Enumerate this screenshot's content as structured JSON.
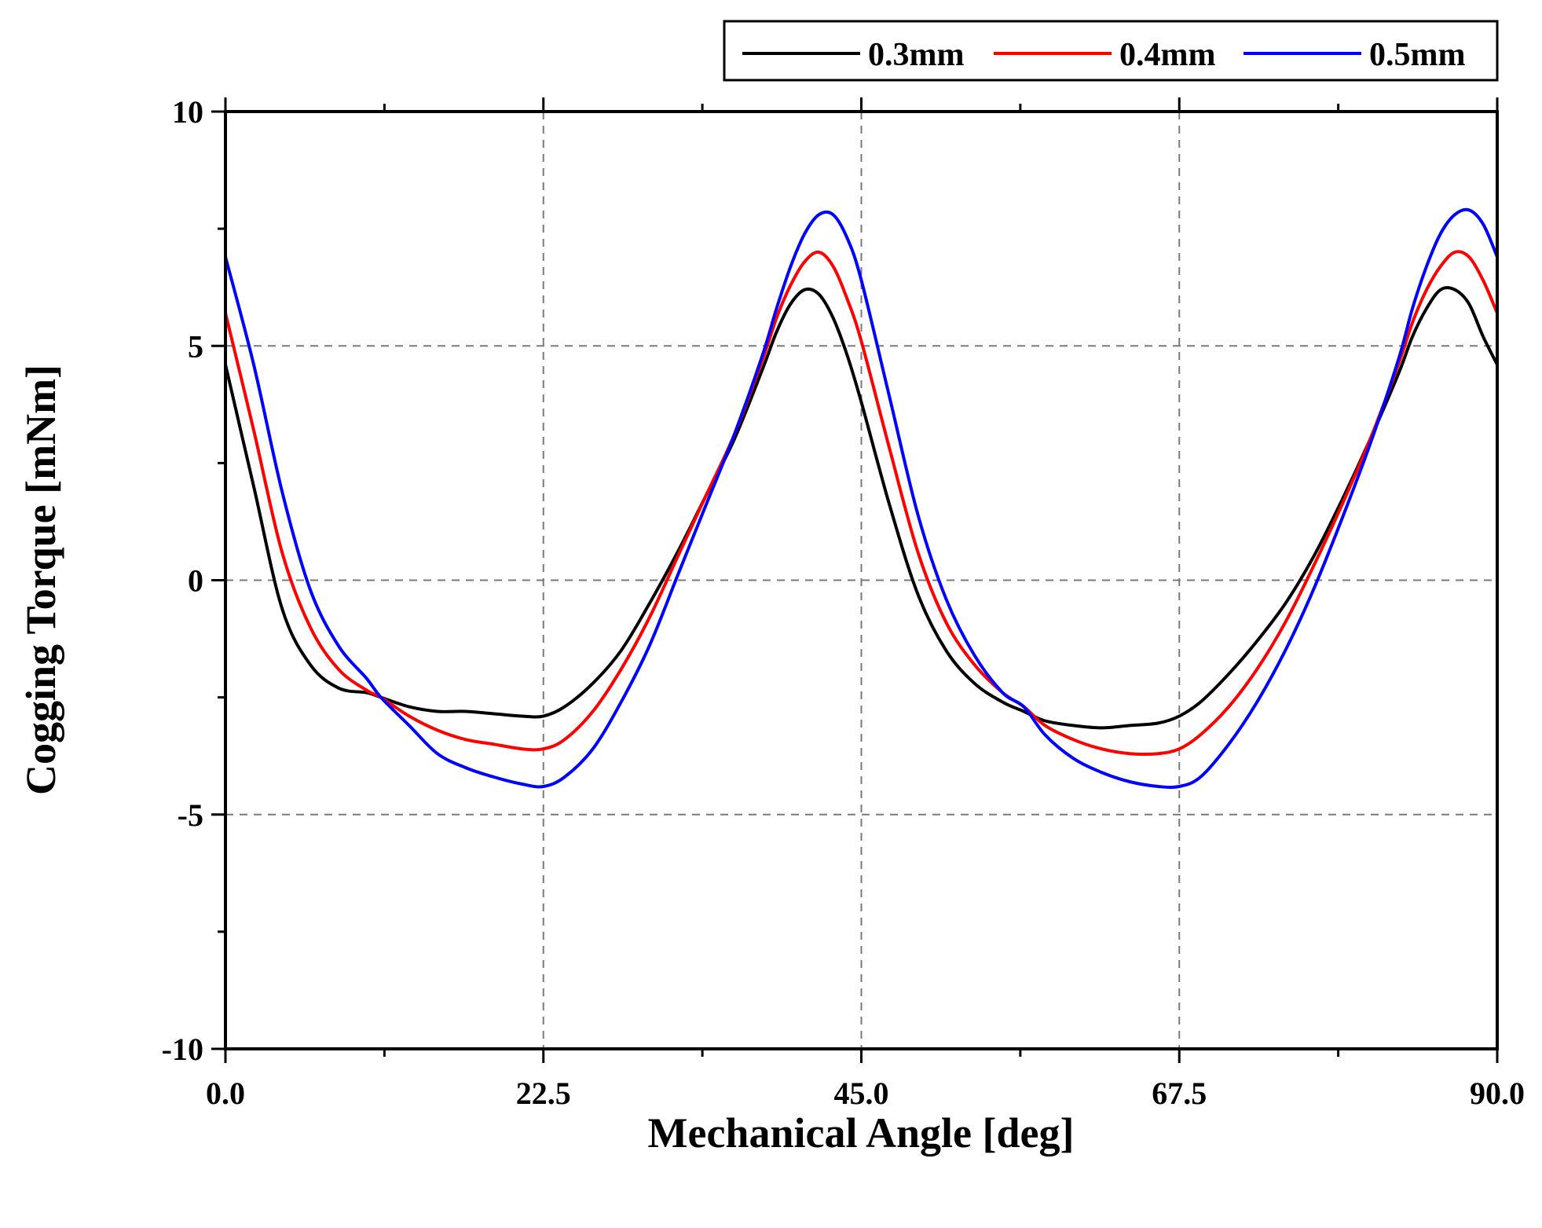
{
  "chart_data": {
    "type": "line",
    "title": "",
    "xlabel": "Mechanical Angle [deg]",
    "ylabel": "Cogging Torque [mNm]",
    "xlim": [
      0,
      90
    ],
    "ylim": [
      -10,
      10
    ],
    "xticks": [
      0,
      22.5,
      45,
      67.5,
      90
    ],
    "xtick_labels": [
      "0.0",
      "22.5",
      "45.0",
      "67.5",
      "90.0"
    ],
    "xminor": [
      11.25,
      33.75,
      56.25,
      78.75
    ],
    "yticks": [
      -10,
      -5,
      0,
      5,
      10
    ],
    "ytick_labels": [
      "-10",
      "-5",
      "0",
      "5",
      "10"
    ],
    "yminor": [
      -7.5,
      -2.5,
      2.5,
      7.5
    ],
    "grid": true,
    "legend_position": "top-right",
    "series": [
      {
        "name": "0.3mm",
        "color": "#000000",
        "x": [
          0,
          2,
          4,
          6,
          8,
          10,
          11,
          13,
          15,
          17,
          19,
          21,
          22.5,
          24,
          26,
          28,
          30,
          32,
          34,
          36,
          38,
          39,
          40,
          41,
          42,
          43,
          44,
          45,
          47,
          49,
          51,
          53,
          55,
          56.5,
          58,
          60,
          62,
          64,
          66,
          67.5,
          69,
          71,
          73,
          75,
          77,
          79,
          81,
          83,
          84,
          85,
          86,
          87,
          88,
          89,
          90
        ],
        "y": [
          4.6,
          2.0,
          -0.6,
          -1.8,
          -2.3,
          -2.4,
          -2.5,
          -2.7,
          -2.8,
          -2.8,
          -2.85,
          -2.9,
          -2.9,
          -2.7,
          -2.2,
          -1.5,
          -0.5,
          0.6,
          1.8,
          3.0,
          4.5,
          5.3,
          5.9,
          6.2,
          6.1,
          5.6,
          4.8,
          3.8,
          1.6,
          -0.3,
          -1.5,
          -2.2,
          -2.6,
          -2.8,
          -3.0,
          -3.1,
          -3.15,
          -3.1,
          -3.05,
          -2.9,
          -2.6,
          -2.0,
          -1.3,
          -0.5,
          0.5,
          1.7,
          3.0,
          4.4,
          5.2,
          5.8,
          6.2,
          6.2,
          5.9,
          5.2,
          4.6
        ]
      },
      {
        "name": "0.4mm",
        "color": "#ff0000",
        "x": [
          0,
          2,
          4,
          6,
          8,
          10,
          11,
          13,
          15,
          17,
          19,
          21,
          22.5,
          24,
          26,
          28,
          30,
          32,
          34,
          36,
          38,
          39,
          40,
          41,
          42,
          43,
          44,
          45,
          47,
          49,
          51,
          53,
          55,
          56.5,
          58,
          60,
          62,
          64,
          66,
          67.5,
          69,
          71,
          73,
          75,
          77,
          79,
          81,
          83,
          84,
          85,
          86,
          87,
          88,
          89,
          90
        ],
        "y": [
          5.7,
          3.2,
          0.6,
          -1.0,
          -1.9,
          -2.35,
          -2.5,
          -2.9,
          -3.2,
          -3.4,
          -3.5,
          -3.6,
          -3.6,
          -3.4,
          -2.8,
          -1.9,
          -0.8,
          0.5,
          1.8,
          3.1,
          4.7,
          5.6,
          6.3,
          6.8,
          7.0,
          6.7,
          6.0,
          5.1,
          2.8,
          0.6,
          -0.9,
          -1.8,
          -2.4,
          -2.7,
          -3.1,
          -3.4,
          -3.6,
          -3.7,
          -3.7,
          -3.6,
          -3.3,
          -2.7,
          -1.9,
          -0.9,
          0.3,
          1.6,
          3.0,
          4.6,
          5.5,
          6.2,
          6.7,
          7.0,
          6.9,
          6.4,
          5.7
        ]
      },
      {
        "name": "0.5mm",
        "color": "#0000ff",
        "x": [
          0,
          2,
          4,
          6,
          8,
          10,
          11,
          13,
          15,
          17,
          19,
          21,
          22.5,
          24,
          26,
          28,
          30,
          32,
          34,
          36,
          38,
          39,
          40,
          41,
          42,
          43,
          44,
          45,
          47,
          49,
          51,
          53,
          55,
          56.5,
          58,
          60,
          62,
          64,
          66,
          67.5,
          69,
          71,
          73,
          75,
          77,
          79,
          81,
          83,
          84,
          85,
          86,
          87,
          88,
          89,
          90
        ],
        "y": [
          6.9,
          4.6,
          1.9,
          -0.2,
          -1.4,
          -2.1,
          -2.5,
          -3.1,
          -3.7,
          -4.0,
          -4.2,
          -4.35,
          -4.4,
          -4.2,
          -3.6,
          -2.6,
          -1.4,
          0.1,
          1.6,
          3.1,
          4.8,
          5.8,
          6.7,
          7.4,
          7.8,
          7.8,
          7.3,
          6.4,
          3.9,
          1.4,
          -0.4,
          -1.6,
          -2.4,
          -2.7,
          -3.3,
          -3.8,
          -4.1,
          -4.3,
          -4.4,
          -4.4,
          -4.2,
          -3.5,
          -2.6,
          -1.5,
          -0.2,
          1.3,
          2.9,
          4.7,
          5.8,
          6.7,
          7.4,
          7.8,
          7.9,
          7.6,
          6.9
        ]
      }
    ]
  }
}
